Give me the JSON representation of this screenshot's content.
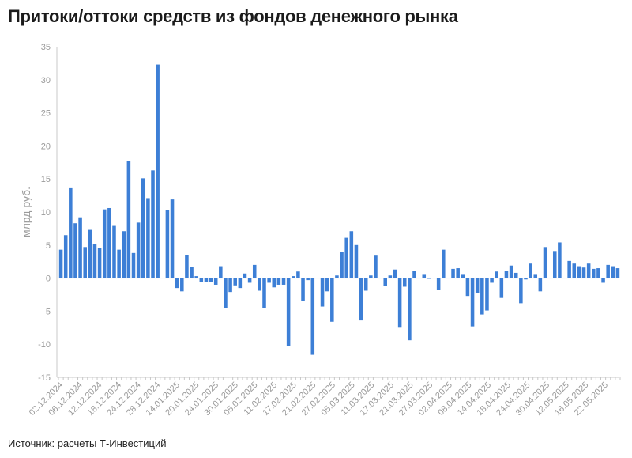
{
  "title": "Притоки/оттоки средств из фондов денежного рынка",
  "source": "Источник: расчеты Т-Инвестиций",
  "colors": {
    "bar": "#3d7fd6",
    "axis": "#c8c8c8",
    "text": "#9a9a9a"
  },
  "chart_data": {
    "type": "bar",
    "title": "Притоки/оттоки средств из фондов денежного рынка",
    "ylabel": "млрд руб.",
    "xlabel": "",
    "ylim": [
      -15,
      35
    ],
    "yticks": [
      -15,
      -10,
      -5,
      0,
      5,
      10,
      15,
      20,
      25,
      30,
      35
    ],
    "xtick_labels": [
      "02.12.2024",
      "06.12.2024",
      "12.12.2024",
      "18.12.2024",
      "24.12.2024",
      "28.12.2024",
      "14.01.2025",
      "20.01.2025",
      "24.01.2025",
      "30.01.2025",
      "05.02.2025",
      "11.02.2025",
      "17.02.2025",
      "21.02.2025",
      "27.02.2025",
      "05.03.2025",
      "11.03.2025",
      "17.03.2025",
      "21.03.2025",
      "27.03.2025",
      "02.04.2025",
      "08.04.2025",
      "14.04.2025",
      "18.04.2025",
      "24.04.2025",
      "30.04.2025",
      "12.05.2025",
      "16.05.2025",
      "22.05.2025"
    ],
    "grid": false,
    "values": [
      4.3,
      6.5,
      13.6,
      8.3,
      9.2,
      4.7,
      7.3,
      5.1,
      4.5,
      10.4,
      10.6,
      7.9,
      4.3,
      7.1,
      17.7,
      3.8,
      8.4,
      15.1,
      12.1,
      16.3,
      32.3,
      0,
      10.3,
      11.9,
      -1.5,
      -2.0,
      3.5,
      1.7,
      0.3,
      -0.6,
      -0.6,
      -0.6,
      -1.0,
      1.8,
      -4.5,
      -2.1,
      -1.1,
      -1.5,
      0.7,
      -0.7,
      2.0,
      -1.9,
      -4.5,
      -0.7,
      -1.4,
      -1.0,
      -1.0,
      -10.3,
      0.3,
      1.0,
      -3.5,
      -0.3,
      -11.6,
      0,
      -4.3,
      -2.0,
      -6.6,
      0.4,
      3.9,
      6.1,
      7.1,
      5.0,
      -6.4,
      -1.9,
      0.4,
      3.4,
      0,
      -1.2,
      0.4,
      1.3,
      -7.5,
      -1.3,
      -9.4,
      1.1,
      0,
      0.5,
      -0.1,
      0,
      -1.8,
      4.3,
      0,
      1.4,
      1.5,
      0.5,
      -2.7,
      -7.3,
      -2.3,
      -5.5,
      -4.9,
      -0.7,
      1.0,
      -3.0,
      1.1,
      1.9,
      0.8,
      -3.8,
      -0.2,
      2.2,
      0.5,
      -2.0,
      4.7,
      0,
      4.1,
      5.4,
      0,
      2.6,
      2.2,
      1.8,
      1.6,
      2.2,
      1.4,
      1.5,
      -0.7,
      2.0,
      1.8,
      1.5
    ]
  }
}
